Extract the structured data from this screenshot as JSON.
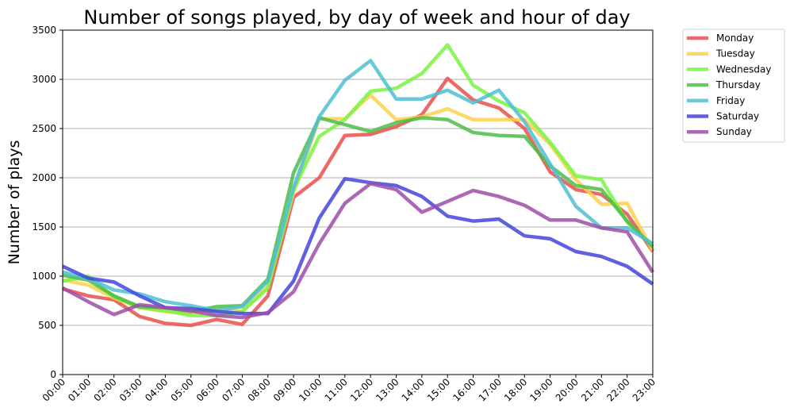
{
  "chart_data": {
    "type": "line",
    "title": "Number of songs played, by day of week and hour of day",
    "xlabel": "",
    "ylabel": "Number of plays",
    "categories": [
      "00:00",
      "01:00",
      "02:00",
      "03:00",
      "04:00",
      "05:00",
      "06:00",
      "07:00",
      "08:00",
      "09:00",
      "10:00",
      "11:00",
      "12:00",
      "13:00",
      "14:00",
      "15:00",
      "16:00",
      "17:00",
      "18:00",
      "19:00",
      "20:00",
      "21:00",
      "22:00",
      "23:00"
    ],
    "ylim": [
      0,
      3500
    ],
    "yticks": [
      0,
      500,
      1000,
      1500,
      2000,
      2500,
      3000,
      3500
    ],
    "grid": "horizontal",
    "legend_position": "outside-top-right",
    "series": [
      {
        "name": "Monday",
        "color": "#e8504b",
        "values": [
          870,
          800,
          760,
          590,
          520,
          500,
          560,
          510,
          800,
          1800,
          2000,
          2430,
          2440,
          2520,
          2640,
          3010,
          2790,
          2710,
          2500,
          2060,
          1880,
          1830,
          1630,
          1250
        ]
      },
      {
        "name": "Tuesday",
        "color": "#fdd04c",
        "values": [
          960,
          910,
          780,
          680,
          640,
          620,
          660,
          640,
          900,
          1850,
          2600,
          2600,
          2840,
          2590,
          2620,
          2700,
          2590,
          2590,
          2590,
          2340,
          1980,
          1730,
          1740,
          1260
        ]
      },
      {
        "name": "Wednesday",
        "color": "#79f542",
        "values": [
          950,
          1000,
          790,
          680,
          650,
          600,
          600,
          640,
          880,
          1880,
          2420,
          2590,
          2880,
          2910,
          3060,
          3350,
          2940,
          2780,
          2660,
          2360,
          2020,
          1980,
          1550,
          1300
        ]
      },
      {
        "name": "Thursday",
        "color": "#4cbd48",
        "values": [
          1010,
          960,
          800,
          690,
          680,
          640,
          690,
          700,
          970,
          2050,
          2610,
          2540,
          2470,
          2560,
          2610,
          2590,
          2460,
          2430,
          2420,
          2120,
          1920,
          1880,
          1560,
          1300
        ]
      },
      {
        "name": "Friday",
        "color": "#4fbfd5",
        "values": [
          1040,
          980,
          860,
          820,
          740,
          700,
          650,
          690,
          950,
          1900,
          2620,
          2990,
          3190,
          2800,
          2800,
          2890,
          2760,
          2890,
          2570,
          2140,
          1710,
          1490,
          1490,
          1330
        ]
      },
      {
        "name": "Saturday",
        "color": "#4445dd",
        "values": [
          1100,
          980,
          940,
          800,
          680,
          670,
          640,
          620,
          620,
          950,
          1590,
          1990,
          1950,
          1920,
          1810,
          1610,
          1560,
          1580,
          1410,
          1380,
          1250,
          1200,
          1100,
          920
        ]
      },
      {
        "name": "Sunday",
        "color": "#9e4ea8",
        "values": [
          880,
          740,
          610,
          710,
          680,
          650,
          600,
          580,
          630,
          840,
          1330,
          1740,
          1940,
          1880,
          1650,
          1760,
          1870,
          1810,
          1720,
          1570,
          1570,
          1490,
          1450,
          1040
        ]
      }
    ]
  }
}
